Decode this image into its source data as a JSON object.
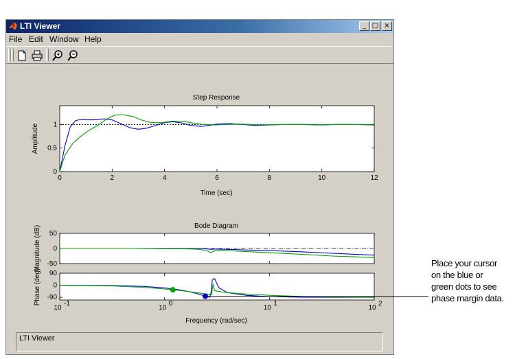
{
  "window": {
    "title": "LTI Viewer",
    "menu": [
      "File",
      "Edit",
      "Window",
      "Help"
    ],
    "controls": {
      "minimize": "_",
      "maximize": "□",
      "close": "×"
    }
  },
  "toolbar": {
    "icons": [
      "new-file-icon",
      "print-icon",
      "zoom-in-icon",
      "zoom-out-icon"
    ]
  },
  "status_text": "LTI Viewer",
  "annotation": {
    "lines": [
      "Place your cursor",
      "on the blue or",
      "green dots to see",
      "phase margin data."
    ]
  },
  "colors": {
    "blue": "#0000cc",
    "green": "#00a000",
    "window": "#d4d0c8"
  },
  "chart_data": [
    {
      "type": "line",
      "title": "Step Response",
      "xlabel": "Time (sec)",
      "ylabel": "Amplitude",
      "xlim": [
        0,
        12
      ],
      "ylim": [
        0,
        1.4
      ],
      "xticks": [
        "0",
        "2",
        "4",
        "6",
        "8",
        "10",
        "12"
      ],
      "yticks": [
        "0",
        "0.5",
        "1"
      ],
      "reference_line": 1,
      "series": [
        {
          "color": "blue",
          "x": [
            0,
            0.2,
            0.4,
            0.6,
            0.8,
            1.0,
            1.3,
            1.7,
            2.0,
            2.4,
            2.7,
            3.0,
            3.3,
            3.6,
            4.0,
            4.3,
            4.7,
            5.0,
            5.4,
            5.7,
            6.0,
            6.5,
            7.0,
            7.5,
            8.0,
            8.5,
            9.0,
            9.5,
            10,
            10.5,
            11,
            11.5,
            12
          ],
          "y": [
            0,
            0.55,
            0.95,
            1.08,
            1.11,
            1.1,
            1.1,
            1.12,
            1.1,
            1.0,
            0.93,
            0.9,
            0.92,
            0.97,
            1.04,
            1.06,
            1.03,
            0.98,
            0.96,
            0.98,
            1.01,
            1.02,
            1.0,
            0.98,
            0.99,
            1.0,
            1.0,
            1.0,
            0.99,
            1.0,
            1.0,
            1.0,
            0.99
          ]
        },
        {
          "color": "green",
          "x": [
            0,
            0.2,
            0.5,
            0.8,
            1.1,
            1.5,
            1.8,
            2.1,
            2.4,
            2.8,
            3.1,
            3.5,
            3.9,
            4.3,
            4.7,
            5.1,
            5.5,
            5.9,
            6.3,
            6.8,
            7.3,
            7.8,
            8.3,
            8.8,
            9.3,
            9.8,
            10.3,
            10.8,
            11.3,
            12
          ],
          "y": [
            0,
            0.35,
            0.6,
            0.75,
            0.87,
            1.0,
            1.12,
            1.2,
            1.21,
            1.17,
            1.1,
            1.04,
            1.04,
            1.07,
            1.07,
            1.03,
            1.0,
            0.99,
            1.0,
            1.01,
            1.0,
            0.99,
            1.0,
            1.0,
            1.0,
            0.99,
            1.0,
            1.0,
            1.0,
            0.99
          ]
        }
      ]
    },
    {
      "type": "line",
      "title": "Bode Diagram",
      "xlabel": "Frequency  (rad/sec)",
      "ylabel_top": "Magnitude (dB)",
      "ylabel_bottom": "Phase (deg)",
      "xscale": "log",
      "xlim": [
        0.1,
        100
      ],
      "xticks": [
        "10",
        "10",
        "10",
        "10"
      ],
      "xtick_exponents": [
        "-1",
        "0",
        "1",
        "2"
      ],
      "magnitude": {
        "ylim": [
          -50,
          50
        ],
        "yticks": [
          "50",
          "0",
          "-50"
        ],
        "reference_line": 0,
        "series": [
          {
            "color": "blue",
            "x": [
              0.3,
              0.5,
              1,
              1.5,
              2,
              2.5,
              2.75,
              2.9,
              3.2,
              4,
              6,
              10,
              20,
              40,
              100
            ],
            "y": [
              0,
              0,
              0,
              0,
              0,
              -1,
              -3,
              -2,
              -2,
              -3,
              -5,
              -7,
              -11,
              -16,
              -22
            ]
          },
          {
            "color": "green",
            "x": [
              0.1,
              0.3,
              0.5,
              1,
              1.5,
              2,
              2.5,
              2.75,
              3.0,
              3.5,
              5,
              10,
              20,
              40,
              100
            ],
            "y": [
              0,
              0,
              0,
              -1,
              -1,
              -2,
              -6,
              -14,
              -7,
              -6,
              -9,
              -14,
              -19,
              -25,
              -30
            ]
          }
        ]
      },
      "phase": {
        "ylim": [
          -110,
          90
        ],
        "yticks": [
          "90",
          "0",
          "-90"
        ],
        "reference_line": -180,
        "series": [
          {
            "color": "blue",
            "x": [
              0.1,
              0.3,
              0.6,
              1,
              1.5,
              2,
              2.4,
              2.7,
              2.8,
              2.85,
              3.0,
              3.3,
              4,
              6,
              10,
              20,
              50,
              100
            ],
            "y": [
              0,
              -2,
              -8,
              -20,
              -38,
              -60,
              -80,
              -90,
              -40,
              40,
              50,
              -20,
              -55,
              -75,
              -85,
              -89,
              -90,
              -90
            ]
          },
          {
            "color": "green",
            "x": [
              0.1,
              0.3,
              0.6,
              1,
              1.5,
              2,
              2.5,
              2.8,
              2.9,
              3.0,
              3.5,
              5,
              10,
              20,
              50,
              100
            ],
            "y": [
              0,
              -5,
              -15,
              -28,
              -42,
              -55,
              -65,
              -72,
              10,
              -40,
              -50,
              -62,
              -75,
              -84,
              -88,
              -90
            ]
          }
        ],
        "markers": [
          {
            "color": "green",
            "x": 1.2,
            "y": -34
          },
          {
            "color": "blue",
            "x": 2.45,
            "y": -82
          }
        ]
      }
    }
  ]
}
